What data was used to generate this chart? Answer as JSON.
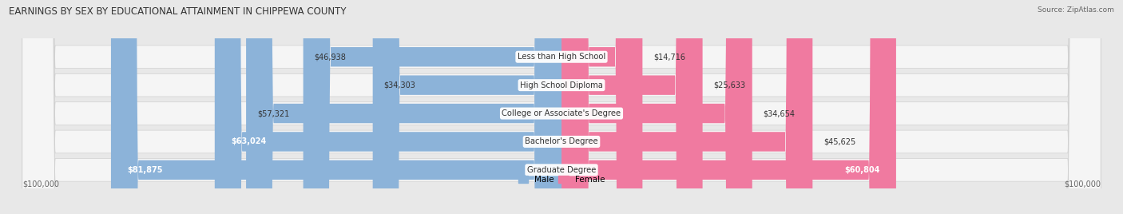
{
  "title": "EARNINGS BY SEX BY EDUCATIONAL ATTAINMENT IN CHIPPEWA COUNTY",
  "source": "Source: ZipAtlas.com",
  "categories": [
    "Less than High School",
    "High School Diploma",
    "College or Associate's Degree",
    "Bachelor's Degree",
    "Graduate Degree"
  ],
  "male_values": [
    46938,
    34303,
    57321,
    63024,
    81875
  ],
  "female_values": [
    14716,
    25633,
    34654,
    45625,
    60804
  ],
  "male_color": "#8cb3d9",
  "female_color": "#f07aa0",
  "male_label": "Male",
  "female_label": "Female",
  "max_value": 100000,
  "background_color": "#e8e8e8",
  "row_bg_color": "#f5f5f5",
  "title_fontsize": 8.5,
  "source_fontsize": 6.5,
  "bar_label_fontsize": 7.0,
  "cat_label_fontsize": 7.2,
  "axis_label": "$100,000"
}
